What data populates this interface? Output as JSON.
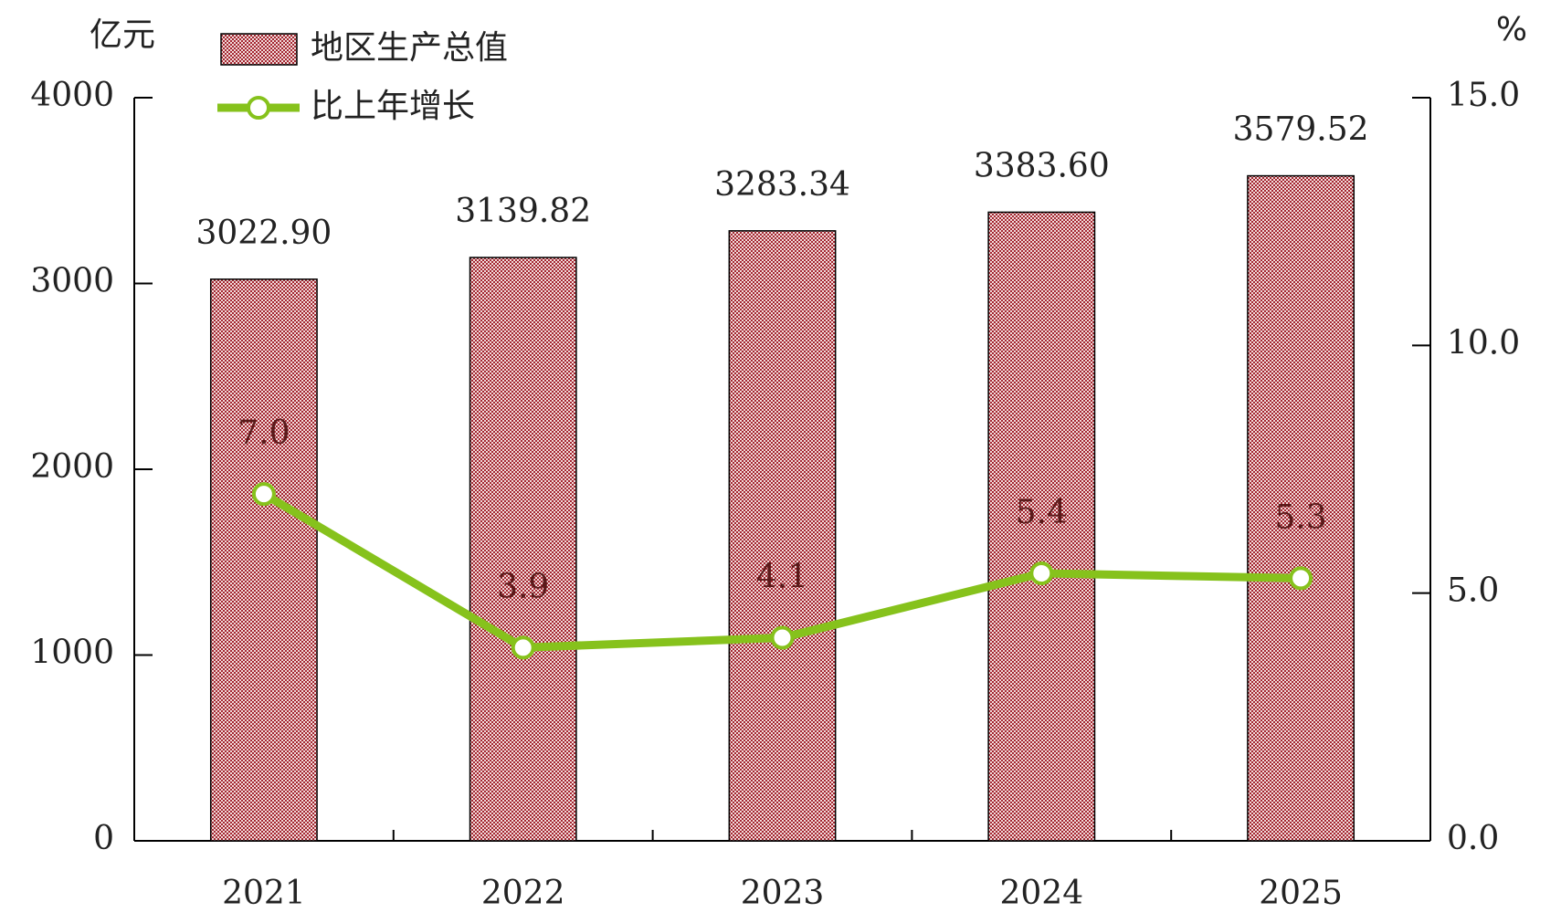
{
  "chart_data": {
    "type": "bar",
    "y_unit": "亿元",
    "y2_unit": "%",
    "categories": [
      "2021",
      "2022",
      "2023",
      "2024",
      "2025"
    ],
    "series": [
      {
        "name": "地区生产总值",
        "type": "bar",
        "color": "#a3252f",
        "values": [
          3022.9,
          3139.82,
          3283.34,
          3383.6,
          3579.52
        ],
        "value_labels": [
          "3022.90",
          "3139.82",
          "3283.34",
          "3383.60",
          "3579.52"
        ]
      },
      {
        "name": "比上年增长",
        "type": "line",
        "axis": "y2",
        "color": "#86c21c",
        "values": [
          7.0,
          3.9,
          4.1,
          5.4,
          5.3
        ],
        "value_labels": [
          "7.0",
          "3.9",
          "4.1",
          "5.4",
          "5.3"
        ]
      }
    ],
    "ylim": [
      0,
      4000
    ],
    "yticks": [
      0,
      1000,
      2000,
      3000,
      4000
    ],
    "y2lim": [
      0,
      15
    ],
    "y2ticks": [
      {
        "value": 0,
        "label": "0.0"
      },
      {
        "value": 5,
        "label": "5.0"
      },
      {
        "value": 10,
        "label": "10.0"
      },
      {
        "value": 15,
        "label": "15.0"
      }
    ]
  }
}
